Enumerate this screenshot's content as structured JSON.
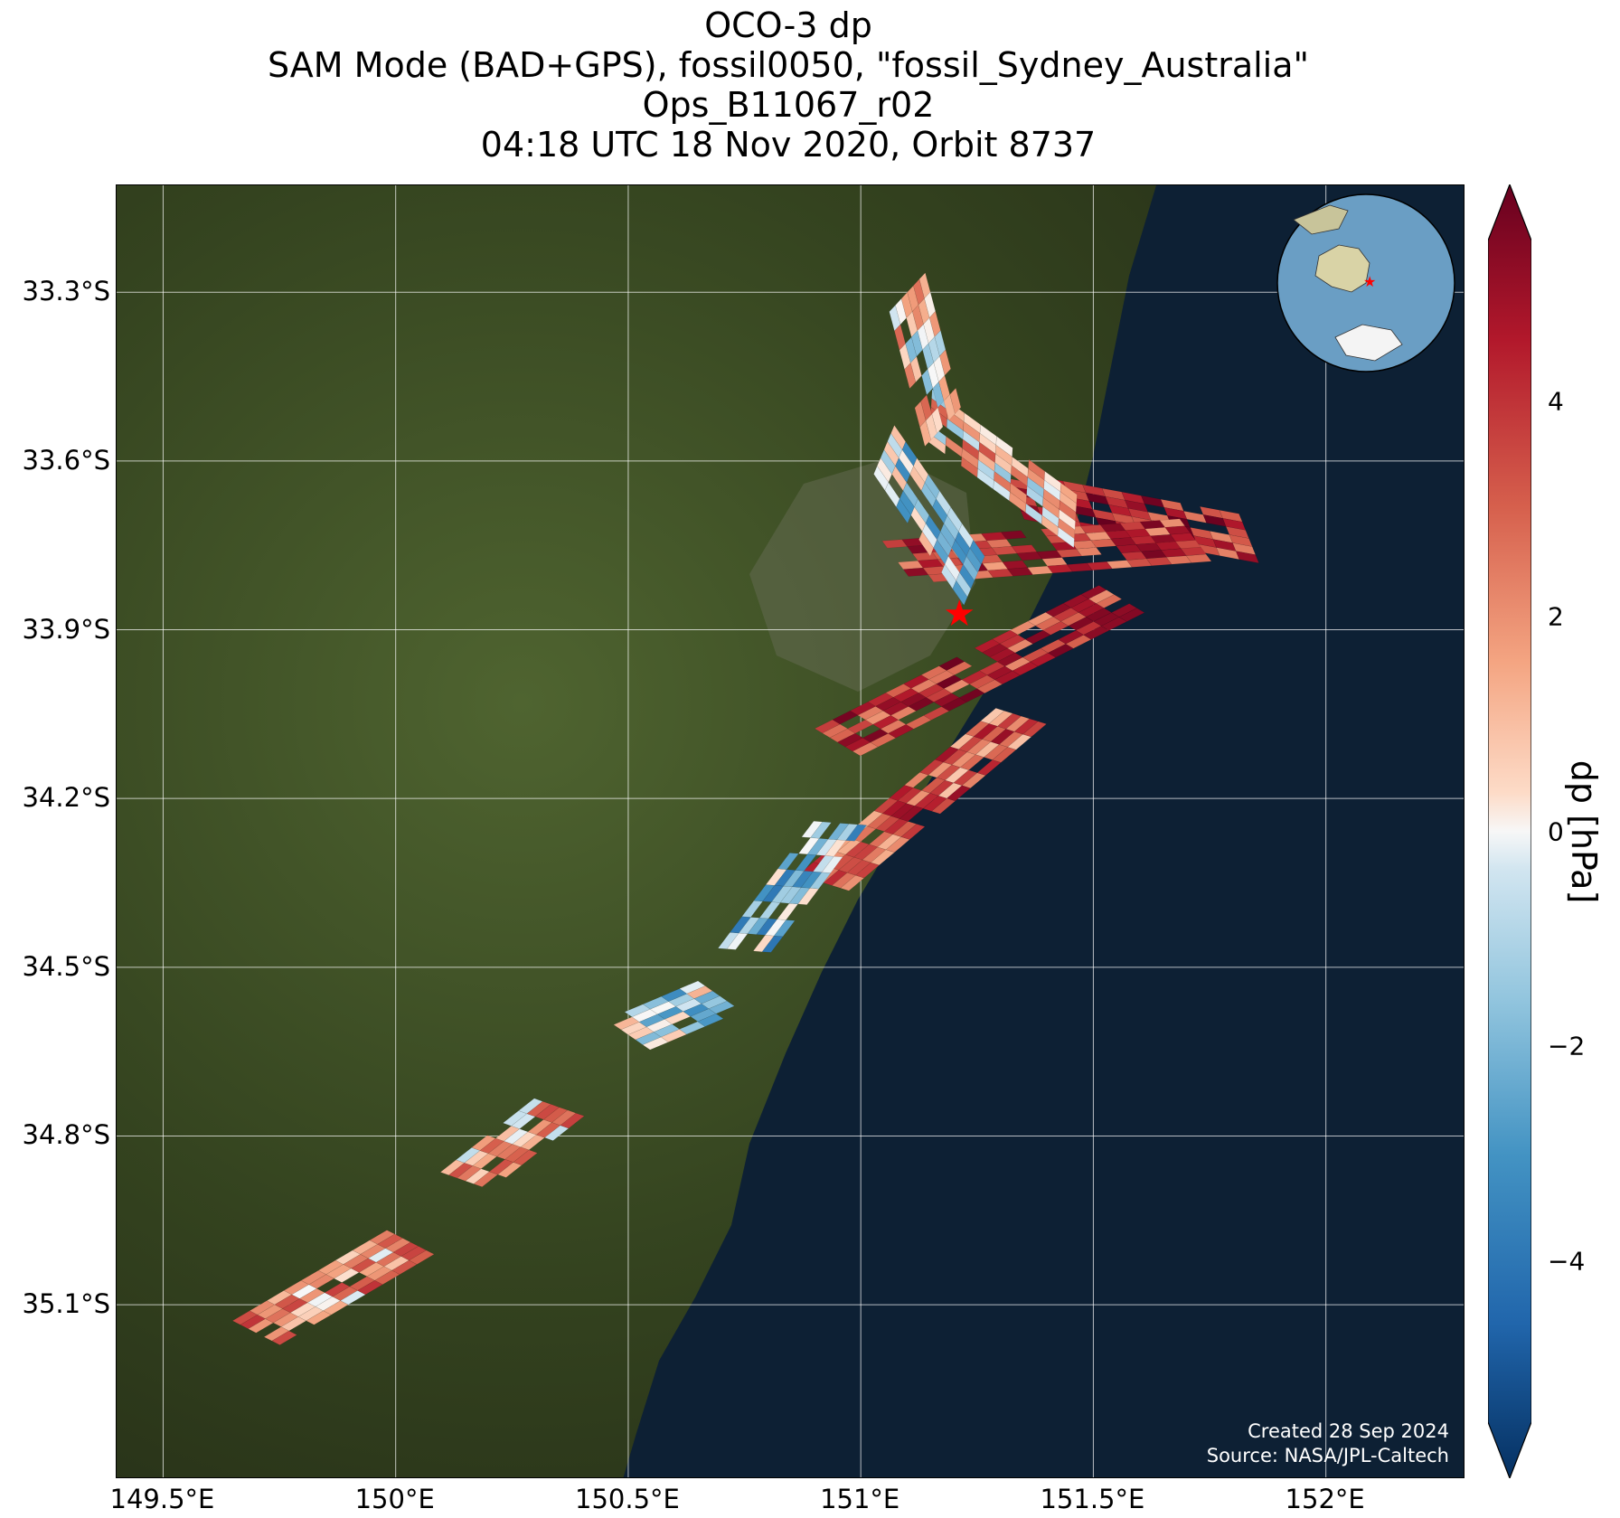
{
  "title": {
    "line1": "OCO-3 dp",
    "line2": "SAM Mode (BAD+GPS), fossil0050, \"fossil_Sydney_Australia\"",
    "line3": "Ops_B11067_r02",
    "line4": "04:18 UTC 18 Nov 2020, Orbit 8737"
  },
  "map": {
    "lon_range": [
      149.4,
      152.3
    ],
    "lat_range": [
      -35.41,
      -33.11
    ],
    "lat_ticks": [
      {
        "value": -33.3,
        "label": "33.3°S"
      },
      {
        "value": -33.6,
        "label": "33.6°S"
      },
      {
        "value": -33.9,
        "label": "33.9°S"
      },
      {
        "value": -34.2,
        "label": "34.2°S"
      },
      {
        "value": -34.5,
        "label": "34.5°S"
      },
      {
        "value": -34.8,
        "label": "34.8°S"
      },
      {
        "value": -35.1,
        "label": "35.1°S"
      }
    ],
    "lon_ticks": [
      {
        "value": 149.5,
        "label": "149.5°E"
      },
      {
        "value": 150.0,
        "label": "150°E"
      },
      {
        "value": 150.5,
        "label": "150.5°E"
      },
      {
        "value": 151.0,
        "label": "151°E"
      },
      {
        "value": 151.5,
        "label": "151.5°E"
      },
      {
        "value": 152.0,
        "label": "152°E"
      }
    ],
    "grid": true,
    "target_marker": {
      "lon": 151.21,
      "lat": -33.87,
      "color": "#ff0000",
      "icon": "star-icon"
    },
    "credit_line1": "Created 28 Sep 2024",
    "credit_line2": "Source: NASA/JPL-Caltech",
    "colors": {
      "land": "#3a4a26",
      "ocean": "#0d2034",
      "grid": "#ffffff"
    }
  },
  "chart_data": {
    "type": "heatmap",
    "variable": "dp",
    "units": "hPa",
    "colormap": "RdBu_r",
    "vmin": -5.5,
    "vmax": 5.5,
    "swaths": [
      {
        "lon0": 151.33,
        "lat0": -33.66,
        "lon1": 151.85,
        "lat1": -33.74,
        "mean_dp": 3.8
      },
      {
        "lon0": 151.08,
        "lat0": -33.78,
        "lon1": 151.73,
        "lat1": -33.74,
        "mean_dp": 3.2
      },
      {
        "lon0": 150.95,
        "lat0": -34.1,
        "lon1": 151.55,
        "lat1": -33.85,
        "mean_dp": 3.5
      },
      {
        "lon0": 150.92,
        "lat0": -34.35,
        "lon1": 151.35,
        "lat1": -34.05,
        "mean_dp": 2.6
      },
      {
        "lon0": 151.15,
        "lat0": -33.52,
        "lon1": 151.45,
        "lat1": -33.7,
        "mean_dp": 0.8
      },
      {
        "lon0": 151.05,
        "lat0": -33.58,
        "lon1": 151.25,
        "lat1": -33.82,
        "mean_dp": -0.9
      },
      {
        "lon0": 151.1,
        "lat0": -33.3,
        "lon1": 151.18,
        "lat1": -33.55,
        "mean_dp": 0.5
      },
      {
        "lon0": 150.75,
        "lat0": -34.47,
        "lon1": 150.95,
        "lat1": -34.25,
        "mean_dp": -1.5
      },
      {
        "lon0": 150.5,
        "lat0": -34.62,
        "lon1": 150.7,
        "lat1": -34.55,
        "mean_dp": -0.8
      },
      {
        "lon0": 150.15,
        "lat0": -34.88,
        "lon1": 150.35,
        "lat1": -34.75,
        "mean_dp": 1.2
      },
      {
        "lon0": 149.7,
        "lat0": -35.15,
        "lon1": 150.05,
        "lat1": -34.98,
        "mean_dp": 1.5
      }
    ],
    "colorbar": {
      "ticks": [
        {
          "value": 4,
          "label": "4"
        },
        {
          "value": 2,
          "label": "2"
        },
        {
          "value": 0,
          "label": "0"
        },
        {
          "value": -2,
          "label": "−2"
        },
        {
          "value": -4,
          "label": "−4"
        }
      ],
      "label": "dp [hPa]",
      "extend": "both"
    }
  }
}
